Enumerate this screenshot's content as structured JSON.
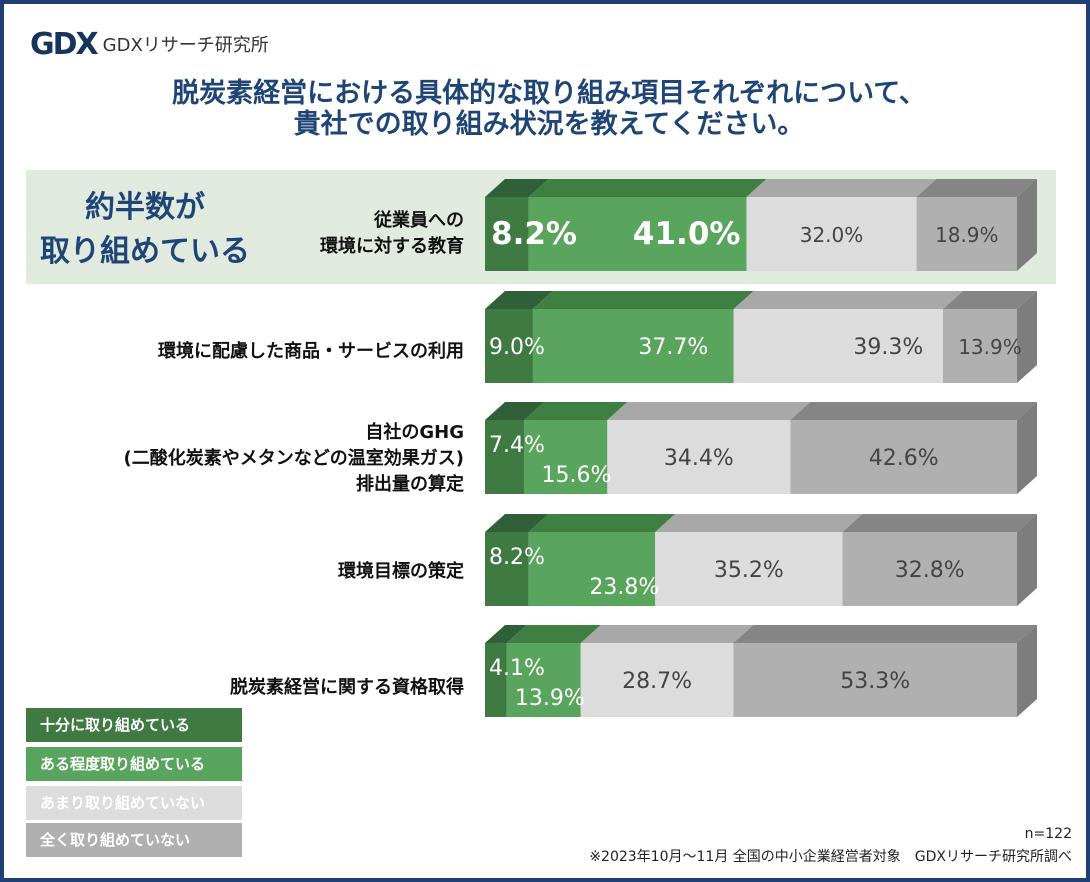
{
  "header": {
    "logo_mark": "GDX",
    "logo_text": "GDXリサーチ研究所",
    "title_line1": "脱炭素経営における具体的な取り組み項目それぞれについて、",
    "title_line2": "貴社での取り組み状況を教えてください。"
  },
  "highlight": {
    "line1": "約半数が",
    "line2": "取り組めている"
  },
  "categories": [
    {
      "lines": [
        "従業員への",
        "環境に対する教育"
      ]
    },
    {
      "lines": [
        "環境に配慮した商品・サービスの利用"
      ]
    },
    {
      "lines": [
        "自社のGHG",
        "(二酸化炭素やメタンなどの温室効果ガス)",
        "排出量の算定"
      ]
    },
    {
      "lines": [
        "環境目標の策定"
      ]
    },
    {
      "lines": [
        "脱炭素経営に関する資格取得"
      ]
    }
  ],
  "legend": [
    {
      "label": "十分に取り組めている"
    },
    {
      "label": "ある程度取り組めている"
    },
    {
      "label": "あまり取り組めていない"
    },
    {
      "label": "全く取り組めていない"
    }
  ],
  "colors": {
    "s1": "#3f7a43",
    "s1_top": "#30603a",
    "s2": "#5aa55e",
    "s2_top": "#3f7f42",
    "s3": "#dcdcdc",
    "s3_top": "#a8a8a8",
    "s4": "#b0b0b0",
    "s4_top": "#858585",
    "side": "#7d7d7d"
  },
  "chart_data": {
    "type": "bar",
    "orientation": "horizontal-stacked-100",
    "categories": [
      "従業員への環境に対する教育",
      "環境に配慮した商品・サービスの利用",
      "自社のGHG(二酸化炭素やメタンなどの温室効果ガス)排出量の算定",
      "環境目標の策定",
      "脱炭素経営に関する資格取得"
    ],
    "series": [
      {
        "name": "十分に取り組めている",
        "values": [
          8.2,
          9.0,
          7.4,
          8.2,
          4.1
        ],
        "labels": [
          "8.2%",
          "9.0%",
          "7.4%",
          "8.2%",
          "4.1%"
        ]
      },
      {
        "name": "ある程度取り組めている",
        "values": [
          41.0,
          37.7,
          15.6,
          23.8,
          13.9
        ],
        "labels": [
          "41.0%",
          "37.7%",
          "15.6%",
          "23.8%",
          "13.9%"
        ]
      },
      {
        "name": "あまり取り組めていない",
        "values": [
          32.0,
          39.3,
          34.4,
          35.2,
          28.7
        ],
        "labels": [
          "32.0%",
          "39.3%",
          "34.4%",
          "35.2%",
          "28.7%"
        ]
      },
      {
        "name": "全く取り組めていない",
        "values": [
          18.9,
          13.9,
          42.6,
          32.8,
          53.3
        ],
        "labels": [
          "18.9%",
          "13.9%",
          "42.6%",
          "32.8%",
          "53.3%"
        ]
      }
    ],
    "xlim": [
      0,
      100
    ],
    "title": "脱炭素経営における具体的な取り組み項目それぞれについて、貴社での取り組み状況を教えてください。"
  },
  "footer": {
    "n": "n=122",
    "note": "※2023年10月～11月 全国の中小企業経営者対象　GDXリサーチ研究所調べ"
  }
}
